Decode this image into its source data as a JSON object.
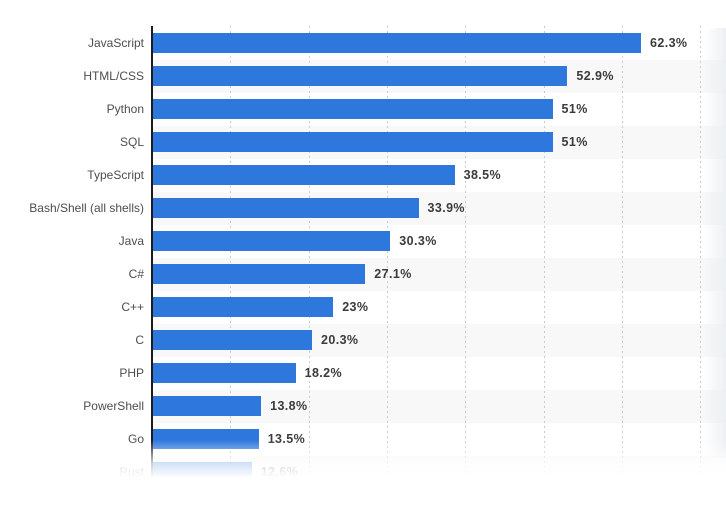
{
  "chart_data": {
    "type": "bar",
    "orientation": "horizontal",
    "title": "",
    "xlabel": "",
    "ylabel": "",
    "categories": [
      "JavaScript",
      "HTML/CSS",
      "Python",
      "SQL",
      "TypeScript",
      "Bash/Shell (all shells)",
      "Java",
      "C#",
      "C++",
      "C",
      "PHP",
      "PowerShell",
      "Go",
      "Rust"
    ],
    "values": [
      62.3,
      52.9,
      51,
      51,
      38.5,
      33.9,
      30.3,
      27.1,
      23,
      20.3,
      18.2,
      13.8,
      13.5,
      12.6
    ],
    "value_labels": [
      "62.3%",
      "52.9%",
      "51%",
      "51%",
      "38.5%",
      "33.9%",
      "30.3%",
      "27.1%",
      "23%",
      "20.3%",
      "18.2%",
      "13.8%",
      "13.5%",
      "12.6%"
    ],
    "xlim": [
      0,
      73
    ],
    "gridlines_percent": [
      10,
      20,
      30,
      40,
      50,
      60,
      70
    ],
    "grid_style": "dotted",
    "legend": "none",
    "zebra_stripes": true,
    "bottom_row_faded": true,
    "colors": {
      "bar": "#2e77dc",
      "axis": "#1c1c1c",
      "gridline": "#cbcbcb",
      "stripe": "#f8f8f8",
      "category_label": "#4d4d4d",
      "value_label": "#3b3b3b",
      "background": "#ffffff"
    }
  }
}
